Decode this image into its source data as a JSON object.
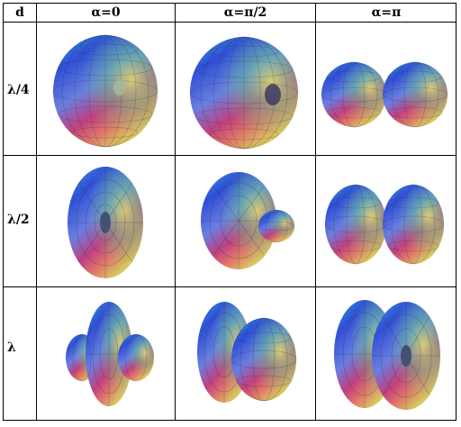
{
  "table": {
    "corner_label": "d",
    "column_headers": [
      "α=0",
      "α=π/2",
      "α=π"
    ],
    "row_headers": [
      "λ/4",
      "λ/2",
      "λ"
    ]
  },
  "cells": [
    {
      "row": "λ/4",
      "col": "α=0",
      "pattern": "single-ellipsoid-lobe"
    },
    {
      "row": "λ/4",
      "col": "α=π/2",
      "pattern": "single-ellipsoid-lobe"
    },
    {
      "row": "λ/4",
      "col": "α=π",
      "pattern": "two-lobes-endfire"
    },
    {
      "row": "λ/2",
      "col": "α=0",
      "pattern": "toroid-broadside"
    },
    {
      "row": "λ/2",
      "col": "α=π/2",
      "pattern": "toroid-with-small-lobe"
    },
    {
      "row": "λ/2",
      "col": "α=π",
      "pattern": "two-lobes-endfire"
    },
    {
      "row": "λ",
      "col": "α=0",
      "pattern": "toroid-with-two-small-lobes"
    },
    {
      "row": "λ",
      "col": "α=π/2",
      "pattern": "toroid-with-side-lobe"
    },
    {
      "row": "λ",
      "col": "α=π",
      "pattern": "double-toroid"
    }
  ],
  "colors": {
    "gradient": [
      "#2f4fd6",
      "#3aa6d8",
      "#66cc88",
      "#d8c860",
      "#e07868",
      "#c04080"
    ],
    "mesh": "#2a3040"
  }
}
